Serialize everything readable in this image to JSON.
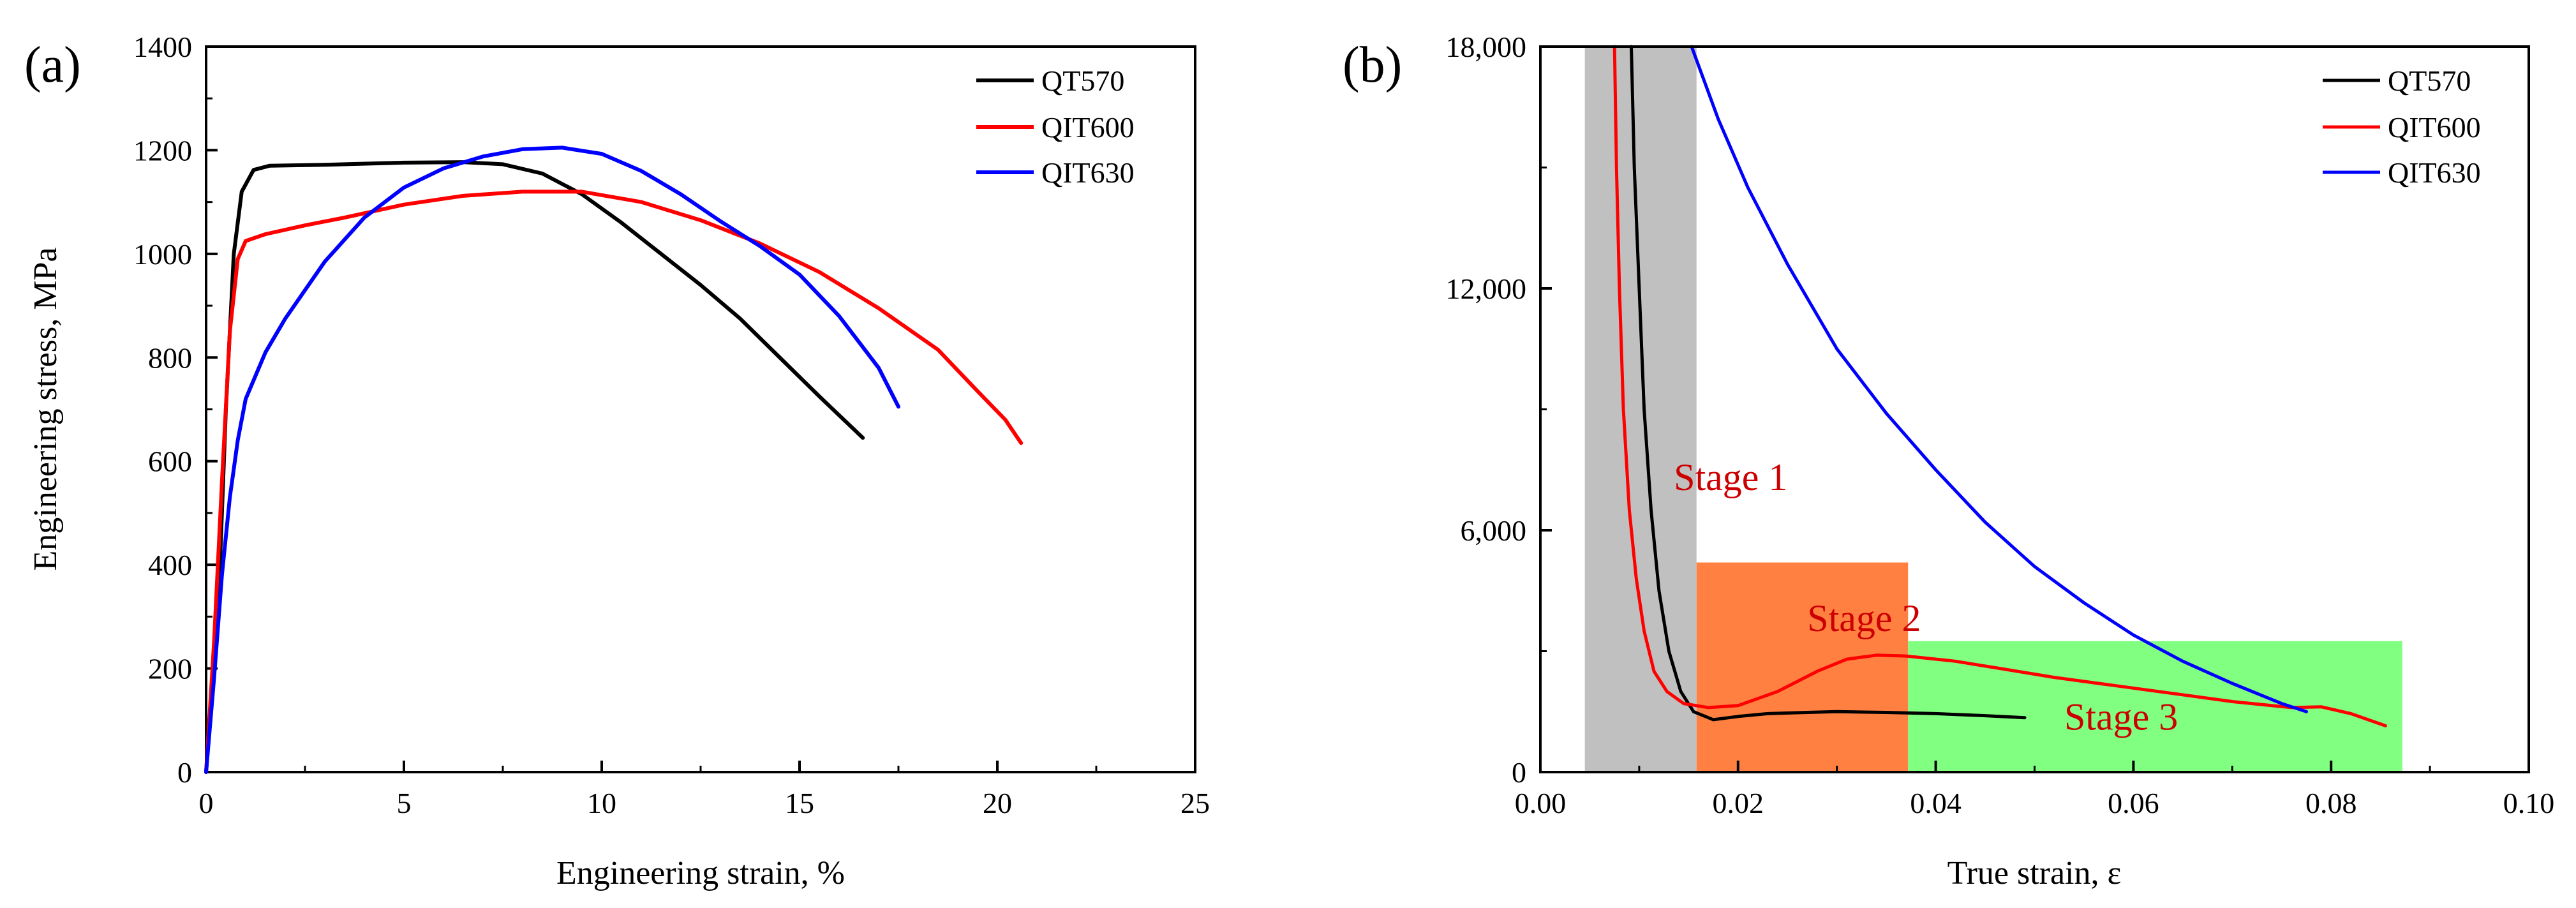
{
  "colors": {
    "QT570": "#000000",
    "QIT600": "#ff0000",
    "QIT630": "#0000ff",
    "stage1_fill": "#c0c0c0",
    "stage2_fill": "#ff8040",
    "stage3_fill": "#80ff80",
    "stage_text": "#cc0000"
  },
  "chart_data": [
    {
      "type": "line",
      "panel_label": "(a)",
      "xlabel": "Engineering strain, %",
      "ylabel": "Engineering stress, MPa",
      "xlim": [
        0,
        25
      ],
      "ylim": [
        0,
        1400
      ],
      "xticks": [
        0,
        5,
        10,
        15,
        20,
        25
      ],
      "xtick_labels": [
        "0",
        "5",
        "10",
        "15",
        "20",
        "25"
      ],
      "yticks": [
        0,
        200,
        400,
        600,
        800,
        1000,
        1200,
        1400
      ],
      "ytick_labels": [
        "0",
        "200",
        "400",
        "600",
        "800",
        "1000",
        "1200",
        "1400"
      ],
      "legend_position": "top-right",
      "series": [
        {
          "name": "QT570",
          "color_key": "QT570",
          "points": [
            [
              0,
              0
            ],
            [
              0.3,
              300
            ],
            [
              0.5,
              700
            ],
            [
              0.7,
              1000
            ],
            [
              0.9,
              1120
            ],
            [
              1.2,
              1162
            ],
            [
              1.6,
              1170
            ],
            [
              3,
              1172
            ],
            [
              5,
              1176
            ],
            [
              6.5,
              1177
            ],
            [
              7.5,
              1173
            ],
            [
              8.5,
              1155
            ],
            [
              9.5,
              1115
            ],
            [
              10.5,
              1060
            ],
            [
              11.5,
              1000
            ],
            [
              12.5,
              940
            ],
            [
              13.5,
              875
            ],
            [
              14.5,
              800
            ],
            [
              15.5,
              725
            ],
            [
              16.6,
              645
            ]
          ]
        },
        {
          "name": "QIT600",
          "color_key": "QIT600",
          "points": [
            [
              0,
              0
            ],
            [
              0.2,
              250
            ],
            [
              0.4,
              560
            ],
            [
              0.6,
              850
            ],
            [
              0.8,
              990
            ],
            [
              1.0,
              1025
            ],
            [
              1.5,
              1038
            ],
            [
              2.5,
              1055
            ],
            [
              3.5,
              1070
            ],
            [
              5,
              1095
            ],
            [
              6.5,
              1112
            ],
            [
              8,
              1120
            ],
            [
              9.5,
              1120
            ],
            [
              11,
              1100
            ],
            [
              12.5,
              1065
            ],
            [
              14,
              1020
            ],
            [
              15.5,
              965
            ],
            [
              17,
              895
            ],
            [
              18.5,
              815
            ],
            [
              19.5,
              735
            ],
            [
              20.2,
              680
            ],
            [
              20.6,
              635
            ]
          ]
        },
        {
          "name": "QIT630",
          "color_key": "QIT630",
          "points": [
            [
              0,
              0
            ],
            [
              0.2,
              180
            ],
            [
              0.4,
              380
            ],
            [
              0.6,
              530
            ],
            [
              0.8,
              640
            ],
            [
              1.0,
              720
            ],
            [
              1.5,
              810
            ],
            [
              2,
              875
            ],
            [
              3,
              985
            ],
            [
              4,
              1070
            ],
            [
              5,
              1128
            ],
            [
              6,
              1165
            ],
            [
              7,
              1188
            ],
            [
              8,
              1202
            ],
            [
              9,
              1205
            ],
            [
              10,
              1193
            ],
            [
              11,
              1160
            ],
            [
              12,
              1115
            ],
            [
              13,
              1063
            ],
            [
              14,
              1015
            ],
            [
              15,
              960
            ],
            [
              16,
              880
            ],
            [
              17,
              780
            ],
            [
              17.5,
              705
            ]
          ]
        }
      ]
    },
    {
      "type": "line",
      "panel_label": "(b)",
      "xlabel": "True strain, ε",
      "ylabel": "",
      "xlim": [
        0,
        0.1
      ],
      "ylim": [
        0,
        18000
      ],
      "xticks": [
        0,
        0.02,
        0.04,
        0.06,
        0.08,
        0.1
      ],
      "xtick_labels": [
        "0.00",
        "0.02",
        "0.04",
        "0.06",
        "0.08",
        "0.10"
      ],
      "yticks": [
        0,
        6000,
        12000,
        18000
      ],
      "ytick_labels": [
        "0",
        "6,000",
        "12,000",
        "18,000"
      ],
      "legend_position": "top-right",
      "stages": [
        {
          "label": "Stage 1",
          "x": [
            0.0045,
            0.0158
          ],
          "y": [
            0,
            18000
          ],
          "fill_key": "stage1_fill",
          "label_at": [
            0.0135,
            7000
          ]
        },
        {
          "label": "Stage 2",
          "x": [
            0.0158,
            0.0372
          ],
          "y": [
            0,
            5200
          ],
          "fill_key": "stage2_fill",
          "label_at": [
            0.027,
            3500
          ]
        },
        {
          "label": "Stage 3",
          "x": [
            0.0372,
            0.0872
          ],
          "y": [
            0,
            3250
          ],
          "fill_key": "stage3_fill",
          "label_at": [
            0.053,
            1050
          ]
        }
      ],
      "series": [
        {
          "name": "QT570",
          "color_key": "QT570",
          "points": [
            [
              0.0092,
              18000
            ],
            [
              0.0095,
              15000
            ],
            [
              0.01,
              12000
            ],
            [
              0.0105,
              9000
            ],
            [
              0.0112,
              6500
            ],
            [
              0.012,
              4500
            ],
            [
              0.013,
              3000
            ],
            [
              0.0142,
              2000
            ],
            [
              0.0155,
              1500
            ],
            [
              0.0175,
              1300
            ],
            [
              0.02,
              1380
            ],
            [
              0.023,
              1450
            ],
            [
              0.027,
              1480
            ],
            [
              0.03,
              1500
            ],
            [
              0.035,
              1480
            ],
            [
              0.04,
              1450
            ],
            [
              0.045,
              1400
            ],
            [
              0.049,
              1350
            ]
          ]
        },
        {
          "name": "QIT600",
          "color_key": "QIT600",
          "points": [
            [
              0.0075,
              18000
            ],
            [
              0.0077,
              15000
            ],
            [
              0.008,
              12000
            ],
            [
              0.0084,
              9000
            ],
            [
              0.009,
              6500
            ],
            [
              0.0097,
              4800
            ],
            [
              0.0105,
              3500
            ],
            [
              0.0115,
              2500
            ],
            [
              0.0128,
              2000
            ],
            [
              0.0145,
              1700
            ],
            [
              0.017,
              1600
            ],
            [
              0.02,
              1650
            ],
            [
              0.024,
              2000
            ],
            [
              0.028,
              2500
            ],
            [
              0.031,
              2800
            ],
            [
              0.034,
              2900
            ],
            [
              0.037,
              2880
            ],
            [
              0.042,
              2750
            ],
            [
              0.047,
              2550
            ],
            [
              0.052,
              2350
            ],
            [
              0.058,
              2150
            ],
            [
              0.064,
              1950
            ],
            [
              0.07,
              1750
            ],
            [
              0.076,
              1600
            ],
            [
              0.079,
              1620
            ],
            [
              0.082,
              1450
            ],
            [
              0.0855,
              1150
            ]
          ]
        },
        {
          "name": "QIT630",
          "color_key": "QIT630",
          "points": [
            [
              0.0153,
              18000
            ],
            [
              0.018,
              16200
            ],
            [
              0.021,
              14500
            ],
            [
              0.025,
              12600
            ],
            [
              0.03,
              10500
            ],
            [
              0.035,
              8900
            ],
            [
              0.04,
              7500
            ],
            [
              0.045,
              6200
            ],
            [
              0.05,
              5100
            ],
            [
              0.055,
              4200
            ],
            [
              0.06,
              3400
            ],
            [
              0.065,
              2750
            ],
            [
              0.07,
              2200
            ],
            [
              0.075,
              1700
            ],
            [
              0.0775,
              1500
            ]
          ]
        }
      ]
    }
  ]
}
